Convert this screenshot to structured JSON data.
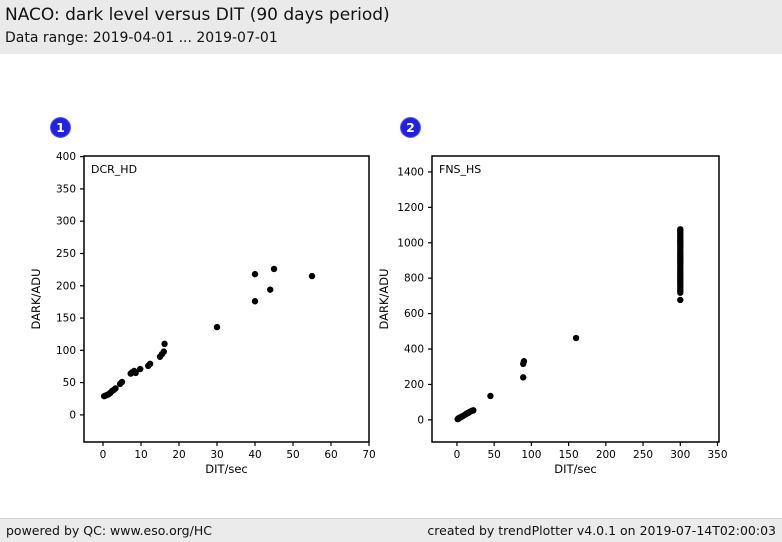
{
  "page": {
    "title": "NACO: dark level versus DIT (90 days period)",
    "subtitle": "Data range: 2019-04-01 ... 2019-07-01"
  },
  "footer": {
    "left": "powered by QC: www.eso.org/HC",
    "right": "created by trendPlotter v4.0.1 on 2019-07-14T02:00:03"
  },
  "colors": {
    "header_bg": "#eaeaea",
    "footer_bg": "#ebebeb",
    "badge_blue": "#2121de",
    "point_color": "#000000",
    "axis_color": "#000000",
    "plot_bg": "#ffffff"
  },
  "chart_data": [
    {
      "type": "scatter",
      "badge": "1",
      "label": "DCR_HD",
      "xlabel": "DIT/sec",
      "ylabel": "DARK/ADU",
      "xlim": [
        -5,
        70
      ],
      "ylim": [
        -42,
        401
      ],
      "xticks": [
        0,
        10,
        20,
        30,
        40,
        50,
        60,
        70
      ],
      "yticks": [
        0,
        50,
        100,
        150,
        200,
        250,
        300,
        350,
        400
      ],
      "grid": false,
      "points": [
        [
          0.3,
          29
        ],
        [
          0.7,
          30
        ],
        [
          1.1,
          31
        ],
        [
          1.5,
          32
        ],
        [
          1.9,
          34
        ],
        [
          2.4,
          37
        ],
        [
          2.9,
          39
        ],
        [
          3.3,
          41
        ],
        [
          4.5,
          48
        ],
        [
          5.0,
          51
        ],
        [
          7.3,
          64
        ],
        [
          7.7,
          66
        ],
        [
          8.2,
          68
        ],
        [
          8.6,
          65
        ],
        [
          9.8,
          71
        ],
        [
          11.9,
          76
        ],
        [
          12.4,
          79
        ],
        [
          15.0,
          90
        ],
        [
          15.5,
          94
        ],
        [
          16.0,
          98
        ],
        [
          16.2,
          110
        ],
        [
          30,
          136
        ],
        [
          40,
          176
        ],
        [
          40,
          218
        ],
        [
          44,
          194
        ],
        [
          45,
          226
        ],
        [
          55,
          215
        ]
      ]
    },
    {
      "type": "scatter",
      "badge": "2",
      "label": "FNS_HS",
      "xlabel": "DIT/sec",
      "ylabel": "DARK/ADU",
      "xlim": [
        -33.5,
        352
      ],
      "ylim": [
        -125,
        1490
      ],
      "xticks": [
        0,
        50,
        100,
        150,
        200,
        250,
        300,
        350
      ],
      "yticks": [
        0,
        200,
        400,
        600,
        800,
        1000,
        1200,
        1400
      ],
      "grid": false,
      "points": [
        [
          1,
          4
        ],
        [
          1.5,
          6
        ],
        [
          2,
          7
        ],
        [
          2.5,
          9
        ],
        [
          3,
          11
        ],
        [
          4,
          13
        ],
        [
          5,
          15
        ],
        [
          6,
          17
        ],
        [
          8,
          22
        ],
        [
          10,
          27
        ],
        [
          12,
          32
        ],
        [
          13,
          35
        ],
        [
          15,
          39
        ],
        [
          16,
          42
        ],
        [
          18,
          47
        ],
        [
          20,
          51
        ],
        [
          22,
          54
        ],
        [
          45,
          135
        ],
        [
          89,
          240
        ],
        [
          89,
          316
        ],
        [
          90,
          331
        ],
        [
          160,
          462
        ],
        [
          300,
          677
        ],
        [
          300,
          718
        ],
        [
          300,
          729
        ],
        [
          300,
          740
        ],
        [
          300,
          751
        ],
        [
          300,
          762
        ],
        [
          300,
          773
        ],
        [
          300,
          784
        ],
        [
          300,
          795
        ],
        [
          300,
          806
        ],
        [
          300,
          817
        ],
        [
          300,
          828
        ],
        [
          300,
          839
        ],
        [
          300,
          850
        ],
        [
          300,
          861
        ],
        [
          300,
          872
        ],
        [
          300,
          883
        ],
        [
          300,
          894
        ],
        [
          300,
          905
        ],
        [
          300,
          916
        ],
        [
          300,
          927
        ],
        [
          300,
          938
        ],
        [
          300,
          949
        ],
        [
          300,
          960
        ],
        [
          300,
          971
        ],
        [
          300,
          982
        ],
        [
          300,
          993
        ],
        [
          300,
          1004
        ],
        [
          300,
          1015
        ],
        [
          300,
          1026
        ],
        [
          300,
          1037
        ],
        [
          300,
          1048
        ],
        [
          300,
          1059
        ],
        [
          300,
          1068
        ],
        [
          300,
          1076
        ]
      ]
    }
  ]
}
